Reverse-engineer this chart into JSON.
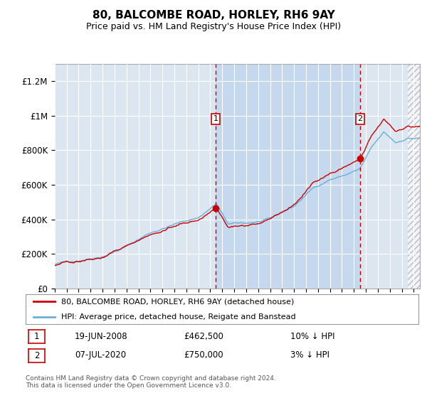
{
  "title": "80, BALCOMBE ROAD, HORLEY, RH6 9AY",
  "subtitle": "Price paid vs. HM Land Registry's House Price Index (HPI)",
  "legend_line1": "80, BALCOMBE ROAD, HORLEY, RH6 9AY (detached house)",
  "legend_line2": "HPI: Average price, detached house, Reigate and Banstead",
  "sale1_label": "1",
  "sale1_date": "19-JUN-2008",
  "sale1_price": "£462,500",
  "sale1_hpi": "10% ↓ HPI",
  "sale2_label": "2",
  "sale2_date": "07-JUL-2020",
  "sale2_price": "£750,000",
  "sale2_hpi": "3% ↓ HPI",
  "footer": "Contains HM Land Registry data © Crown copyright and database right 2024.\nThis data is licensed under the Open Government Licence v3.0.",
  "hpi_line_color": "#6baed6",
  "price_line_color": "#cc0000",
  "plot_bg_color": "#dce6f1",
  "shade_color": "#c5d8ee",
  "ylim_max": 1300000,
  "start_year": 1995,
  "end_year": 2025,
  "sale1_year": 2008.46,
  "sale2_year": 2020.52,
  "sale1_price_val": 462500,
  "sale2_price_val": 750000
}
